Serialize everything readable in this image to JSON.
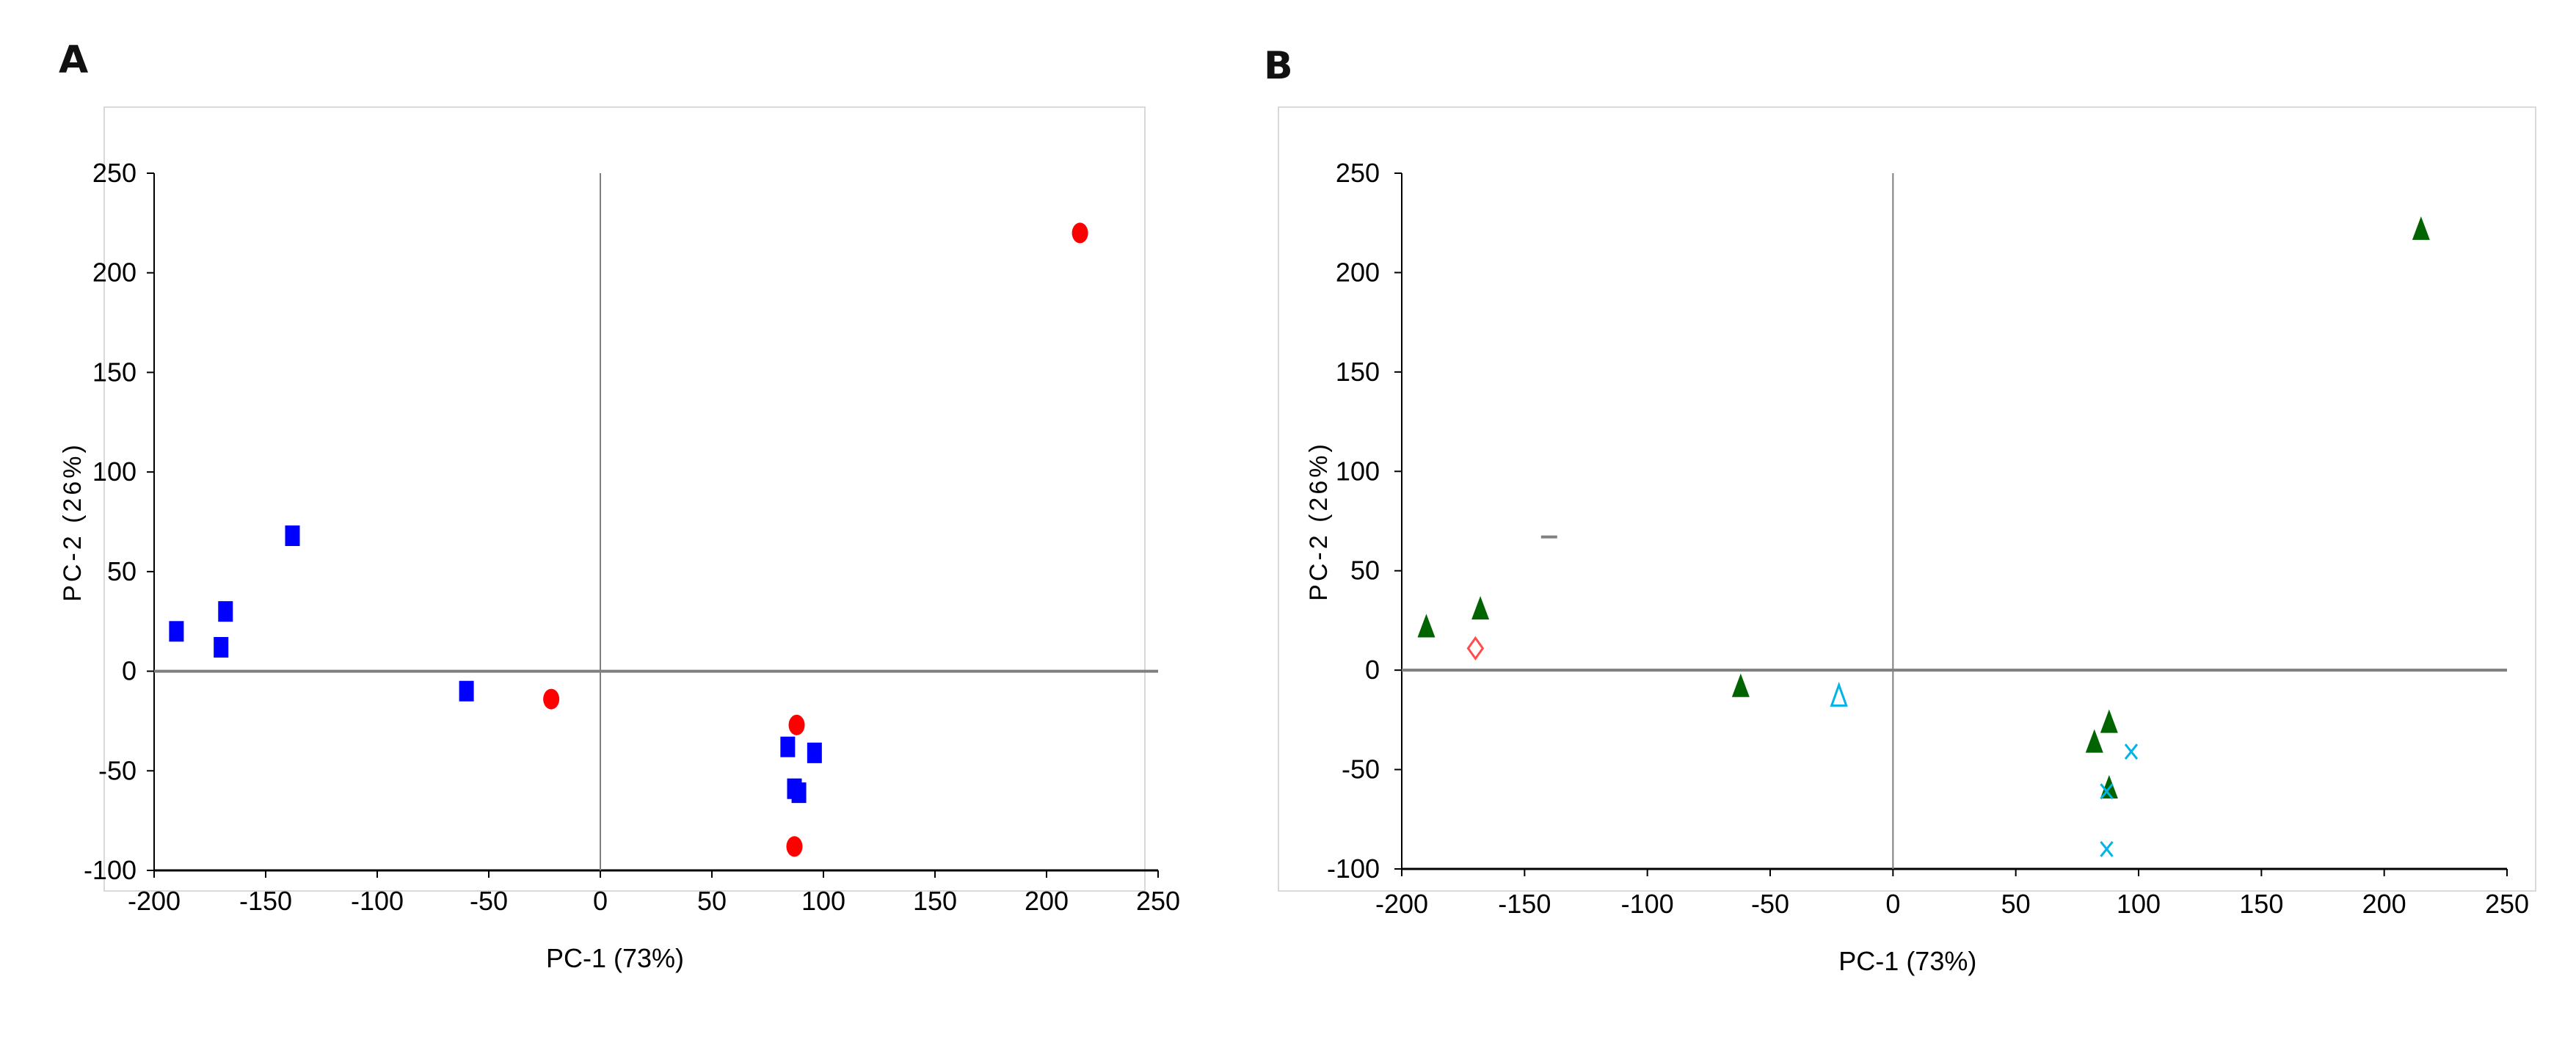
{
  "panels": [
    {
      "label": "A"
    },
    {
      "label": "B"
    }
  ],
  "colors": {
    "blue": "#0000FF",
    "red": "#FF0000",
    "green": "#006400",
    "cyan": "#00B4E6",
    "pink": "#FF4D4D",
    "gray": "#808080",
    "axis": "#7f7f7f",
    "frame": "#d9d9d9"
  },
  "chart_data": [
    {
      "type": "scatter",
      "title": "",
      "xlabel": "PC-1 (73%)",
      "ylabel": "PC-2 (26%)",
      "xlim": [
        -200,
        250
      ],
      "ylim": [
        -100,
        250
      ],
      "xticks": [
        -200,
        -150,
        -100,
        -50,
        0,
        50,
        100,
        150,
        200,
        250
      ],
      "yticks": [
        -100,
        -50,
        0,
        50,
        100,
        150,
        200,
        250
      ],
      "series": [
        {
          "name": "blue squares",
          "marker": "square",
          "color": "#0000FF",
          "x": [
            -190,
            -170,
            -168,
            -138,
            -60,
            84,
            87,
            89,
            96
          ],
          "y": [
            20,
            12,
            30,
            68,
            -10,
            -38,
            -59,
            -61,
            -41
          ]
        },
        {
          "name": "red circles",
          "marker": "circle",
          "color": "#FF0000",
          "x": [
            -22,
            88,
            87,
            215
          ],
          "y": [
            -14,
            -27,
            -88,
            220
          ]
        }
      ]
    },
    {
      "type": "scatter",
      "title": "",
      "xlabel": "PC-1 (73%)",
      "ylabel": "PC-2 (26%)",
      "xlim": [
        -200,
        250
      ],
      "ylim": [
        -100,
        250
      ],
      "xticks": [
        -200,
        -150,
        -100,
        -50,
        0,
        50,
        100,
        150,
        200,
        250
      ],
      "yticks": [
        -100,
        -50,
        0,
        50,
        100,
        150,
        200,
        250
      ],
      "series": [
        {
          "name": "green filled triangles",
          "marker": "triangle",
          "color": "#006400",
          "x": [
            -190,
            -168,
            -62,
            82,
            88,
            88,
            215
          ],
          "y": [
            22,
            31,
            -8,
            -36,
            -26,
            -59,
            222
          ]
        },
        {
          "name": "pink open diamond",
          "marker": "diamond-open",
          "color": "#FF4D4D",
          "x": [
            -170
          ],
          "y": [
            11
          ]
        },
        {
          "name": "cyan open triangle",
          "marker": "triangle-open",
          "color": "#00B4E6",
          "x": [
            -22
          ],
          "y": [
            -13
          ]
        },
        {
          "name": "cyan crosses",
          "marker": "cross",
          "color": "#00B4E6",
          "x": [
            97,
            87,
            87
          ],
          "y": [
            -41,
            -61,
            -90
          ]
        },
        {
          "name": "gray dash",
          "marker": "dash",
          "color": "#808080",
          "x": [
            -140
          ],
          "y": [
            67
          ]
        }
      ]
    }
  ]
}
